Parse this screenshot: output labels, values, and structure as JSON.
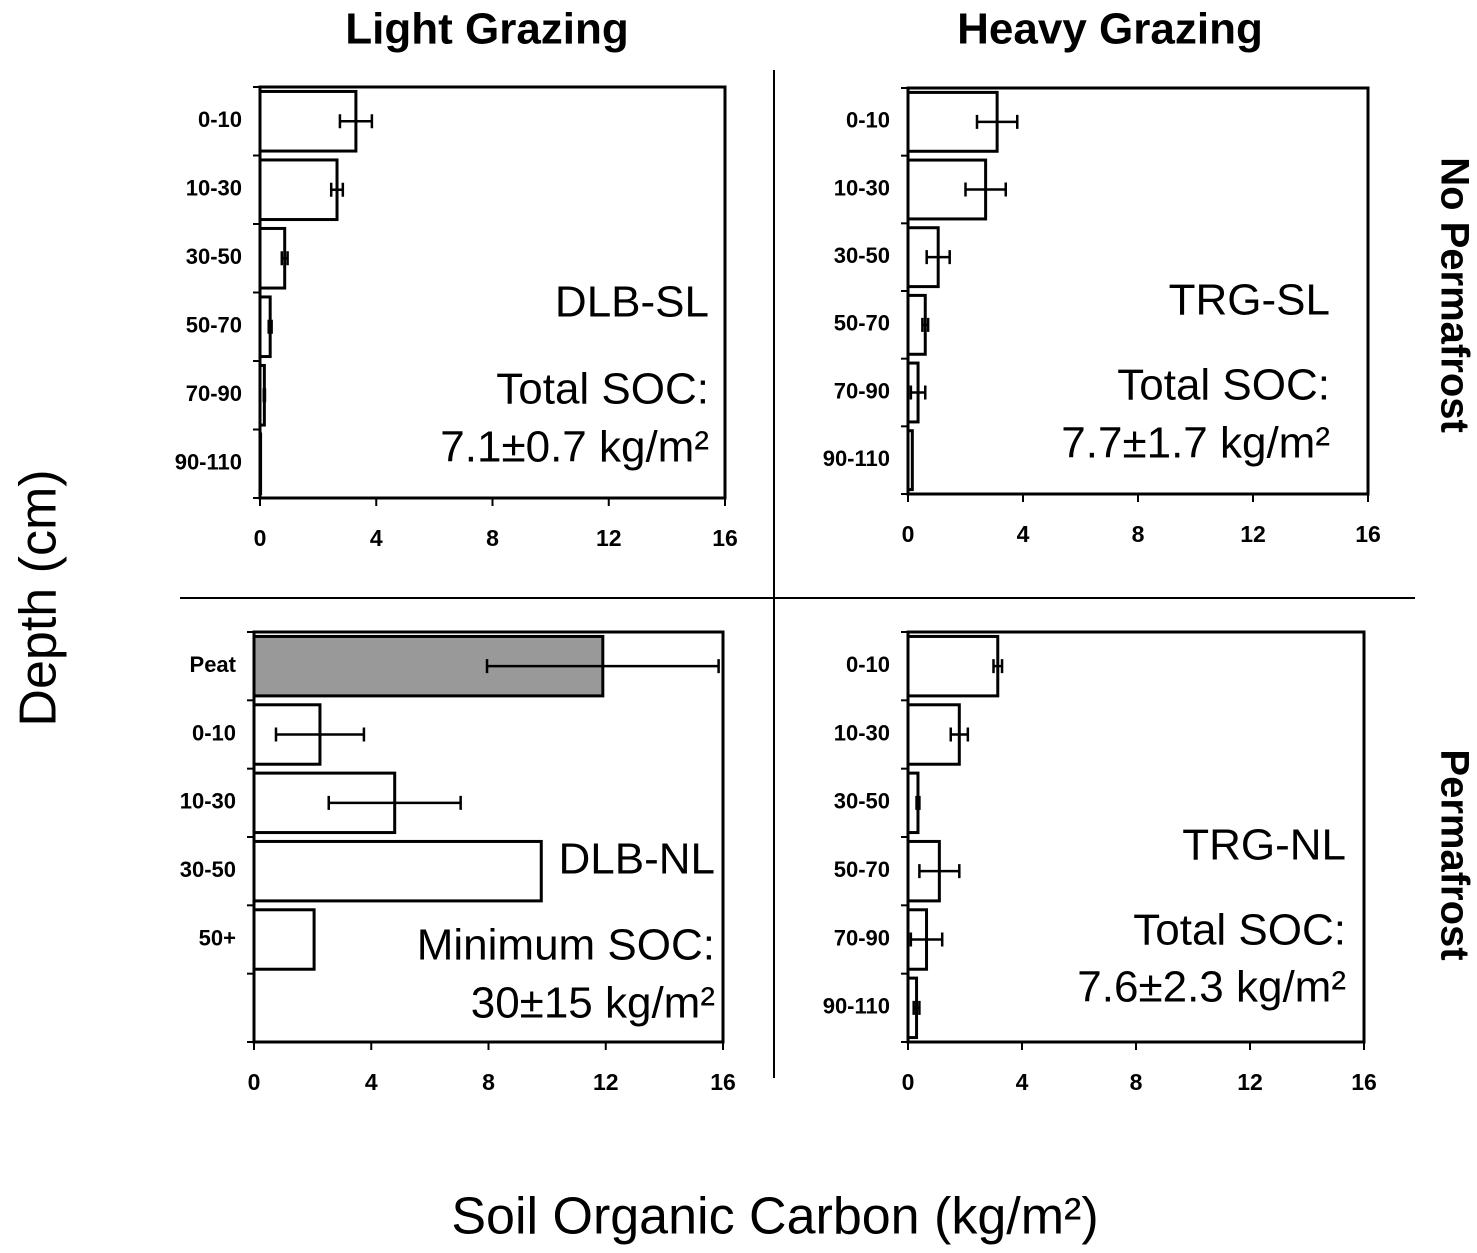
{
  "figure": {
    "columns": [
      "Light Grazing",
      "Heavy Grazing"
    ],
    "rows": [
      "No Permafrost",
      "Permafrost"
    ],
    "ylabel": "Depth (cm)",
    "xlabel": "Soil Organic Carbon (kg/m²)"
  },
  "chart_data": [
    {
      "type": "bar",
      "orientation": "horizontal",
      "site": "DLB-SL",
      "soc_label": "Total SOC:",
      "soc_value": "7.1±0.7 kg/m²",
      "categories": [
        "0-10",
        "10-30",
        "30-50",
        "50-70",
        "70-90",
        "90-110"
      ],
      "values": [
        3.3,
        2.65,
        0.85,
        0.35,
        0.15,
        0.02
      ],
      "errors": [
        0.55,
        0.2,
        0.1,
        0.05,
        0.02,
        null
      ],
      "colors": [
        "#ffffff",
        "#ffffff",
        "#ffffff",
        "#ffffff",
        "#ffffff",
        "#ffffff"
      ],
      "xlim": [
        0,
        16
      ],
      "xticks": [
        0,
        4,
        8,
        12,
        16
      ]
    },
    {
      "type": "bar",
      "orientation": "horizontal",
      "site": "TRG-SL",
      "soc_label": "Total SOC:",
      "soc_value": "7.7±1.7 kg/m²",
      "categories": [
        "0-10",
        "10-30",
        "30-50",
        "50-70",
        "70-90",
        "90-110"
      ],
      "values": [
        3.1,
        2.7,
        1.05,
        0.6,
        0.35,
        0.15
      ],
      "errors": [
        0.7,
        0.7,
        0.4,
        0.1,
        0.25,
        null
      ],
      "colors": [
        "#ffffff",
        "#ffffff",
        "#ffffff",
        "#ffffff",
        "#ffffff",
        "#ffffff"
      ],
      "xlim": [
        0,
        16
      ],
      "xticks": [
        0,
        4,
        8,
        12,
        16
      ]
    },
    {
      "type": "bar",
      "orientation": "horizontal",
      "site": "DLB-NL",
      "soc_label": "Minimum SOC:",
      "soc_value": "30±15 kg/m²",
      "categories": [
        "Peat",
        "0-10",
        "10-30",
        "30-50",
        "50+",
        null
      ],
      "values": [
        11.9,
        2.25,
        4.8,
        9.8,
        2.05,
        null
      ],
      "errors": [
        3.95,
        1.5,
        2.25,
        null,
        null,
        null
      ],
      "colors": [
        "#999999",
        "#ffffff",
        "#ffffff",
        "#ffffff",
        "#ffffff",
        null
      ],
      "xlim": [
        0,
        16
      ],
      "xticks": [
        0,
        4,
        8,
        12,
        16
      ]
    },
    {
      "type": "bar",
      "orientation": "horizontal",
      "site": "TRG-NL",
      "soc_label": "Total SOC:",
      "soc_value": "7.6±2.3 kg/m²",
      "categories": [
        "0-10",
        "10-30",
        "30-50",
        "50-70",
        "70-90",
        "90-110"
      ],
      "values": [
        3.15,
        1.8,
        0.35,
        1.1,
        0.65,
        0.3
      ],
      "errors": [
        0.15,
        0.3,
        0.05,
        0.7,
        0.55,
        0.1
      ],
      "colors": [
        "#ffffff",
        "#ffffff",
        "#ffffff",
        "#ffffff",
        "#ffffff",
        "#ffffff"
      ],
      "xlim": [
        0,
        16
      ],
      "xticks": [
        0,
        4,
        8,
        12,
        16
      ]
    }
  ]
}
